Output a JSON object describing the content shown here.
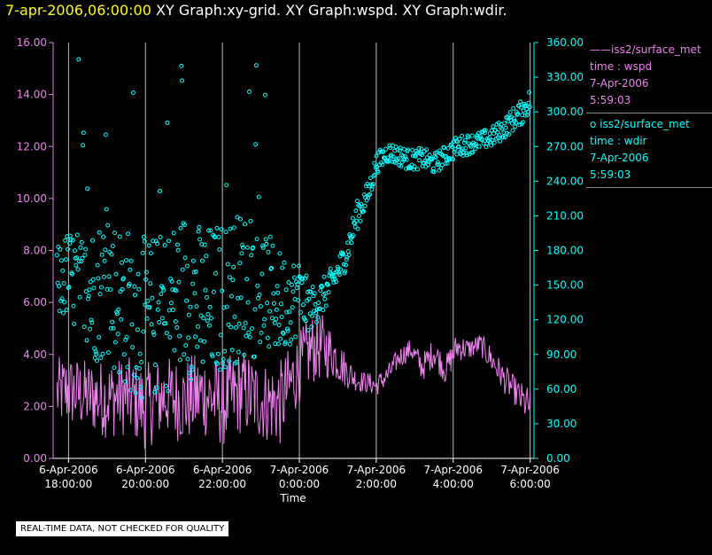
{
  "header": {
    "timestamp": "7-apr-2006,06:00:00",
    "graphs": "XY Graph:xy-grid.  XY Graph:wspd.  XY Graph:wdir."
  },
  "legend": [
    {
      "source": "iss2/surface_met",
      "var": "time : wspd",
      "date": "7-Apr-2006",
      "time": "5:59:03",
      "marker": "line",
      "color": "#ee82ee"
    },
    {
      "source": "iss2/surface_met",
      "var": "time : wdir",
      "date": "7-Apr-2006",
      "time": "5:59:03",
      "marker": "circle",
      "color": "#00ffff"
    }
  ],
  "footer": {
    "warning": "REAL-TIME DATA, NOT CHECKED FOR QUALITY"
  },
  "colors": {
    "left_axis": "#ee82ee",
    "right_axis": "#00ffff",
    "grid": "#bdbdbd",
    "text": "#ffffff"
  },
  "chart_data": {
    "type": "scatter",
    "title": "XY Graph",
    "xlabel": "Time",
    "xlim_hours": [
      -6.4,
      6.1
    ],
    "x_ticks": [
      {
        "h": -6,
        "date": "6-Apr-2006",
        "time": "18:00:00"
      },
      {
        "h": -4,
        "date": "6-Apr-2006",
        "time": "20:00:00"
      },
      {
        "h": -2,
        "date": "6-Apr-2006",
        "time": "22:00:00"
      },
      {
        "h": 0,
        "date": "7-Apr-2006",
        "time": "0:00:00"
      },
      {
        "h": 2,
        "date": "7-Apr-2006",
        "time": "2:00:00"
      },
      {
        "h": 4,
        "date": "7-Apr-2006",
        "time": "4:00:00"
      },
      {
        "h": 6,
        "date": "7-Apr-2006",
        "time": "6:00:00"
      }
    ],
    "left_axis": {
      "name": "wspd",
      "ylim": [
        0,
        16
      ],
      "ticks": [
        "0.00",
        "2.00",
        "4.00",
        "6.00",
        "8.00",
        "10.00",
        "12.00",
        "14.00",
        "16.00"
      ]
    },
    "right_axis": {
      "name": "wdir",
      "ylim": [
        0,
        360
      ],
      "ticks": [
        "0.00",
        "30.00",
        "60.00",
        "90.00",
        "120.00",
        "150.00",
        "180.00",
        "210.00",
        "240.00",
        "270.00",
        "300.00",
        "330.00",
        "360.00"
      ]
    },
    "series": [
      {
        "name": "iss2/surface_met time:wspd",
        "axis": "left",
        "style": "line",
        "x": [
          -6.3,
          -6.0,
          -5.5,
          -5.0,
          -4.5,
          -4.0,
          -3.5,
          -3.0,
          -2.5,
          -2.0,
          -1.5,
          -1.0,
          -0.5,
          0.0,
          0.3,
          0.6,
          0.9,
          1.2,
          1.5,
          1.8,
          2.0,
          2.3,
          2.6,
          2.9,
          3.2,
          3.5,
          3.8,
          4.1,
          4.4,
          4.7,
          5.0,
          5.3,
          5.6,
          5.8,
          6.0
        ],
        "y": [
          2.5,
          2.6,
          2.4,
          2.3,
          2.4,
          2.0,
          2.4,
          2.2,
          2.5,
          2.1,
          2.6,
          2.2,
          2.1,
          3.5,
          4.2,
          4.3,
          4.0,
          3.4,
          3.0,
          2.9,
          2.8,
          3.2,
          3.9,
          4.2,
          3.5,
          4.1,
          3.4,
          4.3,
          4.2,
          4.4,
          3.8,
          3.1,
          2.6,
          2.2,
          2.0
        ],
        "amp": [
          1.0,
          1.0,
          1.0,
          1.1,
          1.1,
          1.2,
          1.1,
          1.2,
          1.2,
          1.2,
          1.2,
          1.1,
          1.2,
          1.0,
          1.0,
          0.9,
          0.7,
          0.5,
          0.3,
          0.3,
          0.3,
          0.3,
          0.3,
          0.3,
          0.4,
          0.4,
          0.4,
          0.4,
          0.3,
          0.3,
          0.4,
          0.4,
          0.4,
          0.5,
          0.5
        ]
      },
      {
        "name": "iss2/surface_met time:wdir",
        "axis": "right",
        "style": "circle",
        "x": [
          -6.3,
          -6.0,
          -5.5,
          -5.0,
          -4.5,
          -4.0,
          -3.5,
          -3.0,
          -2.5,
          -2.0,
          -1.5,
          -1.0,
          -0.5,
          0.0,
          0.3,
          0.6,
          0.9,
          1.2,
          1.5,
          1.8,
          2.0,
          2.3,
          2.6,
          2.9,
          3.2,
          3.5,
          3.8,
          4.1,
          4.4,
          4.7,
          5.0,
          5.3,
          5.6,
          5.8,
          6.0
        ],
        "y": [
          150,
          160,
          140,
          150,
          130,
          120,
          125,
          145,
          130,
          140,
          150,
          145,
          135,
          140,
          130,
          140,
          155,
          175,
          210,
          230,
          255,
          265,
          262,
          258,
          260,
          255,
          262,
          270,
          272,
          275,
          278,
          285,
          295,
          300,
          310
        ],
        "amp": [
          25,
          30,
          45,
          50,
          55,
          55,
          55,
          55,
          55,
          50,
          50,
          45,
          35,
          25,
          15,
          12,
          10,
          10,
          10,
          8,
          7,
          7,
          7,
          7,
          7,
          7,
          7,
          7,
          7,
          6,
          7,
          7,
          8,
          8,
          8
        ]
      }
    ]
  }
}
